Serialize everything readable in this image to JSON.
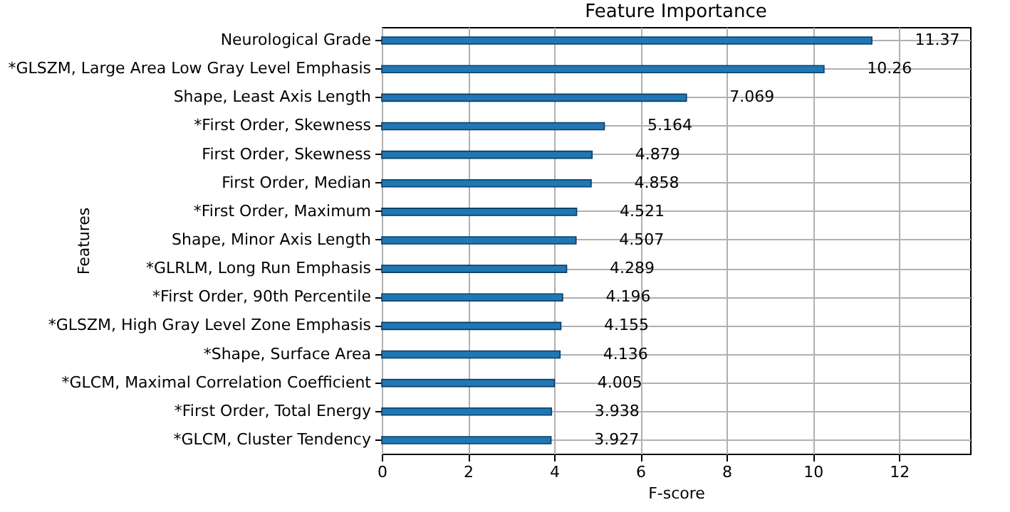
{
  "chart_data": {
    "type": "bar",
    "orientation": "horizontal",
    "title": "Feature Importance",
    "xlabel": "F-score",
    "ylabel": "Features",
    "categories": [
      "Neurological Grade",
      "*GLSZM, Large Area Low Gray Level Emphasis",
      "Shape, Least Axis Length",
      "*First Order, Skewness",
      "First Order, Skewness",
      "First Order, Median",
      "*First Order, Maximum",
      "Shape, Minor Axis Length",
      "*GLRLM, Long Run Emphasis",
      "*First Order, 90th Percentile",
      "*GLSZM, High Gray Level Zone Emphasis",
      "*Shape, Surface Area",
      "*GLCM, Maximal Correlation Coefficient",
      "*First Order, Total Energy",
      "*GLCM, Cluster Tendency"
    ],
    "values": [
      11.37,
      10.26,
      7.069,
      5.164,
      4.879,
      4.858,
      4.521,
      4.507,
      4.289,
      4.196,
      4.155,
      4.136,
      4.005,
      3.938,
      3.927
    ],
    "color": "#1f77b4",
    "data_labels": true,
    "grid": true,
    "xlim": [
      0,
      13.65
    ],
    "xticks": [
      0,
      2,
      4,
      6,
      8,
      10,
      12
    ]
  }
}
